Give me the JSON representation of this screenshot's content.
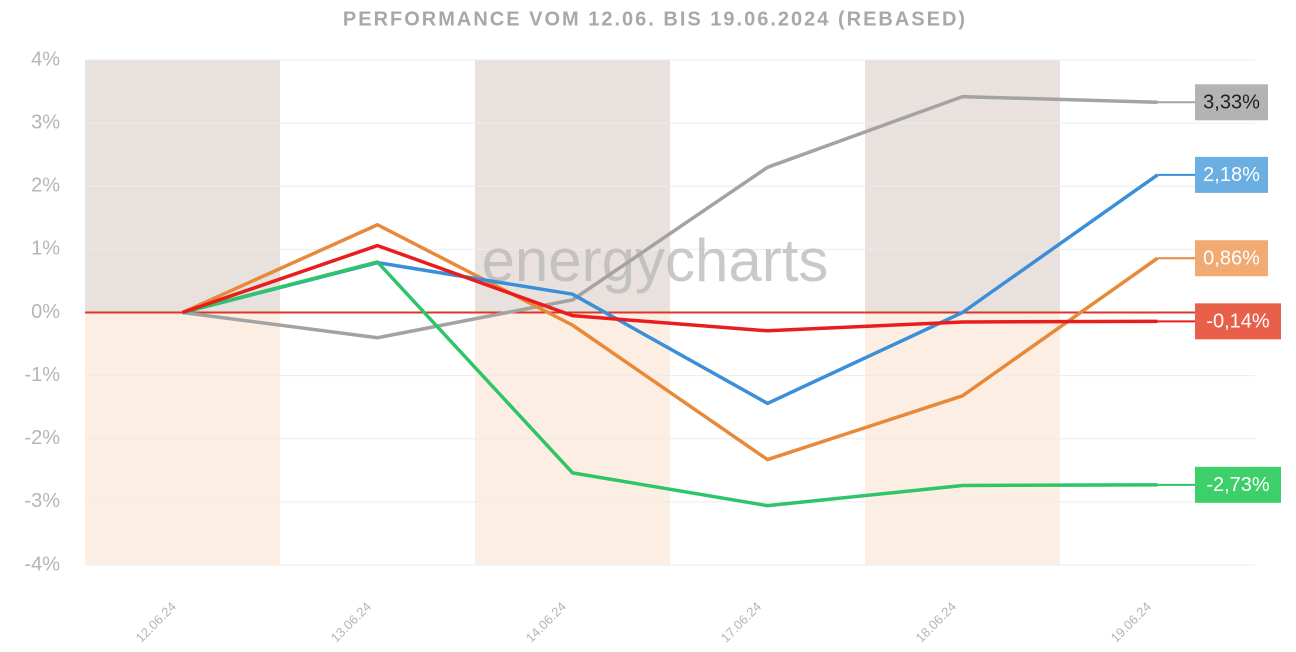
{
  "chart_data": {
    "type": "line",
    "title": "PERFORMANCE VOM 12.06. BIS 19.06.2024 (REBASED)",
    "watermark": "energycharts",
    "categories": [
      "12.06.24",
      "13.06.24",
      "14.06.24",
      "17.06.24",
      "18.06.24",
      "19.06.24"
    ],
    "ylim": [
      -4,
      4
    ],
    "yticks": [
      {
        "value": 4,
        "label": "4%"
      },
      {
        "value": 3,
        "label": "3%"
      },
      {
        "value": 2,
        "label": "2%"
      },
      {
        "value": 1,
        "label": "1%"
      },
      {
        "value": 0,
        "label": "0%"
      },
      {
        "value": -1,
        "label": "-1%"
      },
      {
        "value": -2,
        "label": "-2%"
      },
      {
        "value": -3,
        "label": "-3%"
      },
      {
        "value": -4,
        "label": "-4%"
      }
    ],
    "grid": true,
    "series": [
      {
        "color": "#a3a3a3",
        "label_color": "#b3b3b3",
        "label_text_color": "#222222",
        "values": [
          0,
          -0.4,
          0.2,
          2.3,
          3.42,
          3.33
        ],
        "value_labels": [
          null,
          null,
          null,
          null,
          null,
          "3,33%"
        ]
      },
      {
        "color": "#e8893a",
        "label_color": "#f0aa72",
        "label_text_color": "#ffffff",
        "values": [
          0,
          1.39,
          -0.2,
          -2.33,
          -1.32,
          0.86
        ],
        "value_labels": [
          null,
          null,
          null,
          null,
          null,
          "0,86%"
        ]
      },
      {
        "color": "#3a8fd8",
        "label_color": "#6aaee2",
        "label_text_color": "#ffffff",
        "values": [
          0,
          0.79,
          0.29,
          -1.44,
          0,
          2.18
        ],
        "value_labels": [
          null,
          null,
          null,
          null,
          null,
          "2,18%"
        ]
      },
      {
        "color": "#2ec46a",
        "label_color": "#3ccf6a",
        "label_text_color": "#ffffff",
        "values": [
          0,
          0.8,
          -2.54,
          -3.06,
          -2.74,
          -2.73
        ],
        "value_labels": [
          null,
          null,
          null,
          null,
          null,
          "-2,73%"
        ]
      },
      {
        "color": "#e81e1e",
        "label_color": "#e8604a",
        "label_text_color": "#ffffff",
        "values": [
          0,
          1.06,
          -0.05,
          -0.29,
          -0.15,
          -0.14
        ],
        "value_labels": [
          null,
          null,
          null,
          null,
          null,
          "-0,14%"
        ]
      }
    ]
  }
}
